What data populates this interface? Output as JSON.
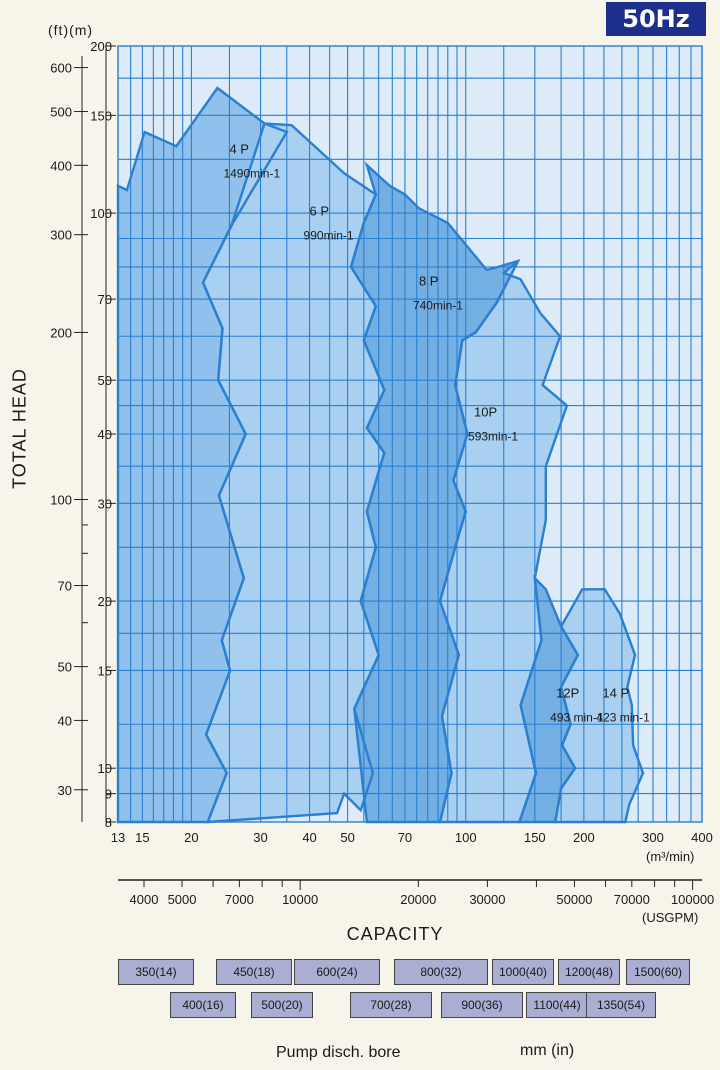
{
  "badge": "50Hz",
  "left_axis_units": "(ft)(m)",
  "chart_data": {
    "type": "area",
    "title": "",
    "xlabel": "CAPACITY",
    "ylabel": "TOTAL HEAD",
    "x_unit": "(m³/min)",
    "x2_unit": "(USGPM)",
    "x_scale": "log",
    "y_scale": "log",
    "xlim": [
      13,
      400
    ],
    "ylim": [
      8,
      200
    ],
    "grid": true,
    "x_ticks": [
      13,
      15,
      20,
      30,
      40,
      50,
      70,
      100,
      150,
      200,
      300,
      400
    ],
    "x_tick_labels": [
      "13",
      "15",
      "20",
      "30",
      "40",
      "50",
      "70",
      "100",
      "150",
      "200",
      "300",
      "400"
    ],
    "y_ticks_m": [
      8,
      9,
      10,
      15,
      20,
      30,
      40,
      50,
      70,
      100,
      150,
      200
    ],
    "y_tick_labels_m": [
      "8",
      "9",
      "10",
      "15",
      "20",
      "30",
      "40",
      "50",
      "70",
      "100",
      "150",
      "200"
    ],
    "y_ticks_ft": [
      30,
      40,
      50,
      70,
      100,
      200,
      300,
      400,
      500,
      600
    ],
    "y_tick_labels_ft": [
      "30",
      "40",
      "50",
      "70",
      "100",
      "200",
      "300",
      "400",
      "500",
      "600"
    ],
    "usgpm_labels": [
      {
        "v": 4000,
        "t": "4000"
      },
      {
        "v": 5000,
        "t": "5000"
      },
      {
        "v": 7000,
        "t": "7000"
      },
      {
        "v": 10000,
        "t": "10000"
      },
      {
        "v": 20000,
        "t": "20000"
      },
      {
        "v": 30000,
        "t": "30000"
      },
      {
        "v": 50000,
        "t": "50000"
      },
      {
        "v": 70000,
        "t": "70000"
      },
      {
        "v": 100000,
        "t": "100000"
      }
    ],
    "series": [
      {
        "name": "4 P",
        "speed": "1490min-1",
        "label_at": [
          25,
          128
        ],
        "fill": "#90c1ec",
        "points": [
          [
            13,
            112
          ],
          [
            13.7,
            110
          ],
          [
            15.2,
            140
          ],
          [
            18.3,
            132
          ],
          [
            23.3,
            168
          ],
          [
            30.7,
            145
          ],
          [
            35,
            140
          ],
          [
            25.3,
            95
          ],
          [
            21.4,
            75
          ],
          [
            24,
            62
          ],
          [
            23.4,
            50
          ],
          [
            27.5,
            40
          ],
          [
            23.5,
            31
          ],
          [
            27.2,
            22
          ],
          [
            23.9,
            17
          ],
          [
            25.1,
            15
          ],
          [
            21.8,
            11.5
          ],
          [
            24.6,
            9.8
          ],
          [
            22,
            8
          ],
          [
            13,
            8
          ]
        ]
      },
      {
        "name": "6 P",
        "speed": "990min-1",
        "label_at": [
          40,
          99
        ],
        "fill": "#a9d0f1",
        "points": [
          [
            36,
            144
          ],
          [
            49,
            118
          ],
          [
            59,
            108
          ],
          [
            55,
            96
          ],
          [
            51,
            80
          ],
          [
            59,
            68
          ],
          [
            55,
            59
          ],
          [
            62,
            48
          ],
          [
            56,
            41
          ],
          [
            62,
            37
          ],
          [
            56,
            29
          ],
          [
            59,
            25
          ],
          [
            54,
            20
          ],
          [
            60,
            16
          ],
          [
            52,
            12.8
          ],
          [
            58,
            9.8
          ],
          [
            54,
            8.4
          ],
          [
            49,
            9
          ],
          [
            47,
            8.3
          ],
          [
            22,
            8
          ],
          [
            24.6,
            9.8
          ],
          [
            21.8,
            11.5
          ],
          [
            25.1,
            15
          ],
          [
            23.9,
            17
          ],
          [
            27.2,
            22
          ],
          [
            23.5,
            31
          ],
          [
            27.5,
            40
          ],
          [
            23.4,
            50
          ],
          [
            24,
            62
          ],
          [
            21.4,
            75
          ],
          [
            25.3,
            95
          ],
          [
            30.7,
            145
          ]
        ]
      },
      {
        "name": "8 P",
        "speed": "740min-1",
        "label_at": [
          76,
          74
        ],
        "fill": "#74afe4",
        "points": [
          [
            56,
            122
          ],
          [
            64,
            112
          ],
          [
            70,
            108
          ],
          [
            76,
            102
          ],
          [
            90,
            96
          ],
          [
            113,
            79
          ],
          [
            121,
            80
          ],
          [
            136,
            82
          ],
          [
            120,
            69
          ],
          [
            106,
            61
          ],
          [
            98,
            59
          ],
          [
            94,
            49
          ],
          [
            101,
            40
          ],
          [
            93,
            33
          ],
          [
            100,
            29
          ],
          [
            94,
            25
          ],
          [
            86,
            20
          ],
          [
            96,
            16
          ],
          [
            87,
            12.4
          ],
          [
            92,
            9.8
          ],
          [
            86,
            8
          ],
          [
            56,
            8
          ],
          [
            52,
            12.8
          ],
          [
            60,
            16
          ],
          [
            54,
            20
          ],
          [
            59,
            25
          ],
          [
            56,
            29
          ],
          [
            62,
            37
          ],
          [
            56,
            41
          ],
          [
            62,
            48
          ],
          [
            55,
            59
          ],
          [
            59,
            68
          ],
          [
            51,
            80
          ],
          [
            55,
            96
          ],
          [
            59,
            108
          ]
        ]
      },
      {
        "name": "10P",
        "speed": "593min-1",
        "label_at": [
          105,
          43
        ],
        "fill": "#a9d0f1",
        "points": [
          [
            136,
            82
          ],
          [
            125,
            78
          ],
          [
            138,
            76
          ],
          [
            155,
            66
          ],
          [
            174,
            60
          ],
          [
            157,
            49
          ],
          [
            181,
            45
          ],
          [
            160,
            35
          ],
          [
            160,
            28
          ],
          [
            150,
            22
          ],
          [
            156,
            17
          ],
          [
            138,
            13
          ],
          [
            151,
            9.8
          ],
          [
            137,
            8
          ],
          [
            86,
            8
          ],
          [
            92,
            9.8
          ],
          [
            87,
            12.4
          ],
          [
            96,
            16
          ],
          [
            86,
            20
          ],
          [
            94,
            25
          ],
          [
            100,
            29
          ],
          [
            93,
            33
          ],
          [
            101,
            40
          ],
          [
            94,
            49
          ],
          [
            98,
            59
          ],
          [
            106,
            61
          ],
          [
            120,
            69
          ]
        ]
      },
      {
        "name": "12P",
        "speed": "493 min-1",
        "label_at": [
          170,
          13.4
        ],
        "fill": "#74afe4",
        "points": [
          [
            150,
            22
          ],
          [
            160,
            21
          ],
          [
            175,
            18
          ],
          [
            193,
            16
          ],
          [
            175,
            14
          ],
          [
            185,
            12
          ],
          [
            176,
            11
          ],
          [
            190,
            10
          ],
          [
            175,
            9.2
          ],
          [
            169,
            8
          ],
          [
            137,
            8
          ],
          [
            151,
            9.8
          ],
          [
            138,
            13
          ],
          [
            156,
            17
          ]
        ]
      },
      {
        "name": "14 P",
        "speed": "423 min-1",
        "label_at": [
          223,
          13.4
        ],
        "fill": "#a9d0f1",
        "points": [
          [
            226,
            21
          ],
          [
            247,
            19
          ],
          [
            270,
            16
          ],
          [
            258,
            14
          ],
          [
            265,
            13
          ],
          [
            267,
            11
          ],
          [
            283,
            9.8
          ],
          [
            261,
            8.6
          ],
          [
            255,
            8
          ],
          [
            169,
            8
          ],
          [
            175,
            9.2
          ],
          [
            190,
            10
          ],
          [
            176,
            11
          ],
          [
            185,
            12
          ],
          [
            175,
            14
          ],
          [
            193,
            16
          ],
          [
            175,
            18
          ],
          [
            198,
            21
          ]
        ]
      }
    ]
  },
  "bore": {
    "caption": "Pump disch. bore",
    "unit": "mm (in)",
    "row1": [
      "350(14)",
      "450(18)",
      "600(24)",
      "800(32)",
      "1000(40)",
      "1200(48)",
      "1500(60)"
    ],
    "row2": [
      "400(16)",
      "500(20)",
      "700(28)",
      "900(36)",
      "1100(44)",
      "1350(54)"
    ]
  }
}
